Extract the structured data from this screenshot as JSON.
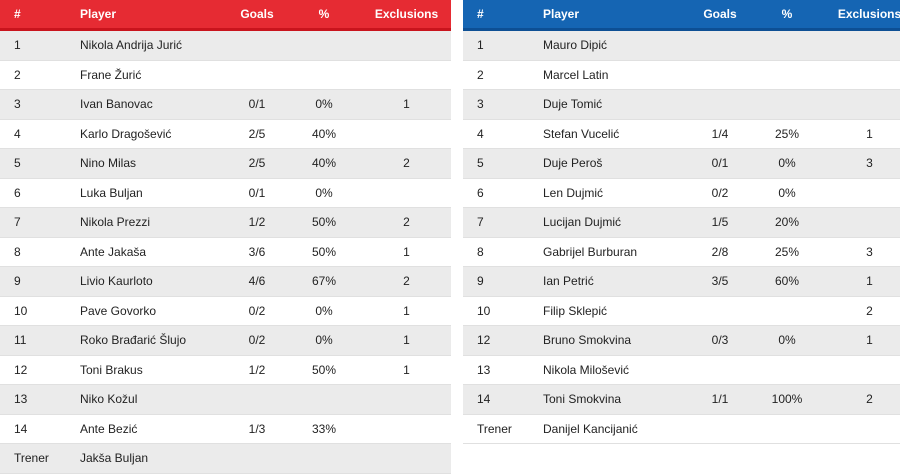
{
  "columns": {
    "num": "#",
    "player": "Player",
    "goals": "Goals",
    "pct": "%",
    "exclusions": "Exclusions"
  },
  "colors": {
    "home_header": "#e62b33",
    "away_header": "#1565b3",
    "row_stripe": "#ebebeb"
  },
  "home_team": {
    "rows": [
      {
        "num": "1",
        "player": "Nikola Andrija Jurić",
        "goals": "",
        "pct": "",
        "exclusions": ""
      },
      {
        "num": "2",
        "player": "Frane Žurić",
        "goals": "",
        "pct": "",
        "exclusions": ""
      },
      {
        "num": "3",
        "player": "Ivan Banovac",
        "goals": "0/1",
        "pct": "0%",
        "exclusions": "1"
      },
      {
        "num": "4",
        "player": "Karlo Dragošević",
        "goals": "2/5",
        "pct": "40%",
        "exclusions": ""
      },
      {
        "num": "5",
        "player": "Nino Milas",
        "goals": "2/5",
        "pct": "40%",
        "exclusions": "2"
      },
      {
        "num": "6",
        "player": "Luka Buljan",
        "goals": "0/1",
        "pct": "0%",
        "exclusions": ""
      },
      {
        "num": "7",
        "player": "Nikola Prezzi",
        "goals": "1/2",
        "pct": "50%",
        "exclusions": "2"
      },
      {
        "num": "8",
        "player": "Ante Jakaša",
        "goals": "3/6",
        "pct": "50%",
        "exclusions": "1"
      },
      {
        "num": "9",
        "player": "Livio Kaurloto",
        "goals": "4/6",
        "pct": "67%",
        "exclusions": "2"
      },
      {
        "num": "10",
        "player": "Pave Govorko",
        "goals": "0/2",
        "pct": "0%",
        "exclusions": "1"
      },
      {
        "num": "11",
        "player": "Roko Brađarić Šlujo",
        "goals": "0/2",
        "pct": "0%",
        "exclusions": "1"
      },
      {
        "num": "12",
        "player": "Toni Brakus",
        "goals": "1/2",
        "pct": "50%",
        "exclusions": "1"
      },
      {
        "num": "13",
        "player": "Niko Kožul",
        "goals": "",
        "pct": "",
        "exclusions": ""
      },
      {
        "num": "14",
        "player": "Ante Bezić",
        "goals": "1/3",
        "pct": "33%",
        "exclusions": ""
      },
      {
        "num": "Trener",
        "player": "Jakša Buljan",
        "goals": "",
        "pct": "",
        "exclusions": ""
      }
    ]
  },
  "away_team": {
    "rows": [
      {
        "num": "1",
        "player": "Mauro Dipić",
        "goals": "",
        "pct": "",
        "exclusions": ""
      },
      {
        "num": "2",
        "player": "Marcel Latin",
        "goals": "",
        "pct": "",
        "exclusions": ""
      },
      {
        "num": "3",
        "player": "Duje Tomić",
        "goals": "",
        "pct": "",
        "exclusions": ""
      },
      {
        "num": "4",
        "player": "Stefan Vucelić",
        "goals": "1/4",
        "pct": "25%",
        "exclusions": "1"
      },
      {
        "num": "5",
        "player": "Duje Peroš",
        "goals": "0/1",
        "pct": "0%",
        "exclusions": "3"
      },
      {
        "num": "6",
        "player": "Len Dujmić",
        "goals": "0/2",
        "pct": "0%",
        "exclusions": ""
      },
      {
        "num": "7",
        "player": "Lucijan Dujmić",
        "goals": "1/5",
        "pct": "20%",
        "exclusions": ""
      },
      {
        "num": "8",
        "player": "Gabrijel Burburan",
        "goals": "2/8",
        "pct": "25%",
        "exclusions": "3"
      },
      {
        "num": "9",
        "player": "Ian Petrić",
        "goals": "3/5",
        "pct": "60%",
        "exclusions": "1"
      },
      {
        "num": "10",
        "player": "Filip Sklepić",
        "goals": "",
        "pct": "",
        "exclusions": "2"
      },
      {
        "num": "12",
        "player": "Bruno Smokvina",
        "goals": "0/3",
        "pct": "0%",
        "exclusions": "1"
      },
      {
        "num": "13",
        "player": "Nikola Milošević",
        "goals": "",
        "pct": "",
        "exclusions": ""
      },
      {
        "num": "14",
        "player": "Toni Smokvina",
        "goals": "1/1",
        "pct": "100%",
        "exclusions": "2"
      },
      {
        "num": "Trener",
        "player": "Danijel Kancijanić",
        "goals": "",
        "pct": "",
        "exclusions": ""
      }
    ]
  }
}
